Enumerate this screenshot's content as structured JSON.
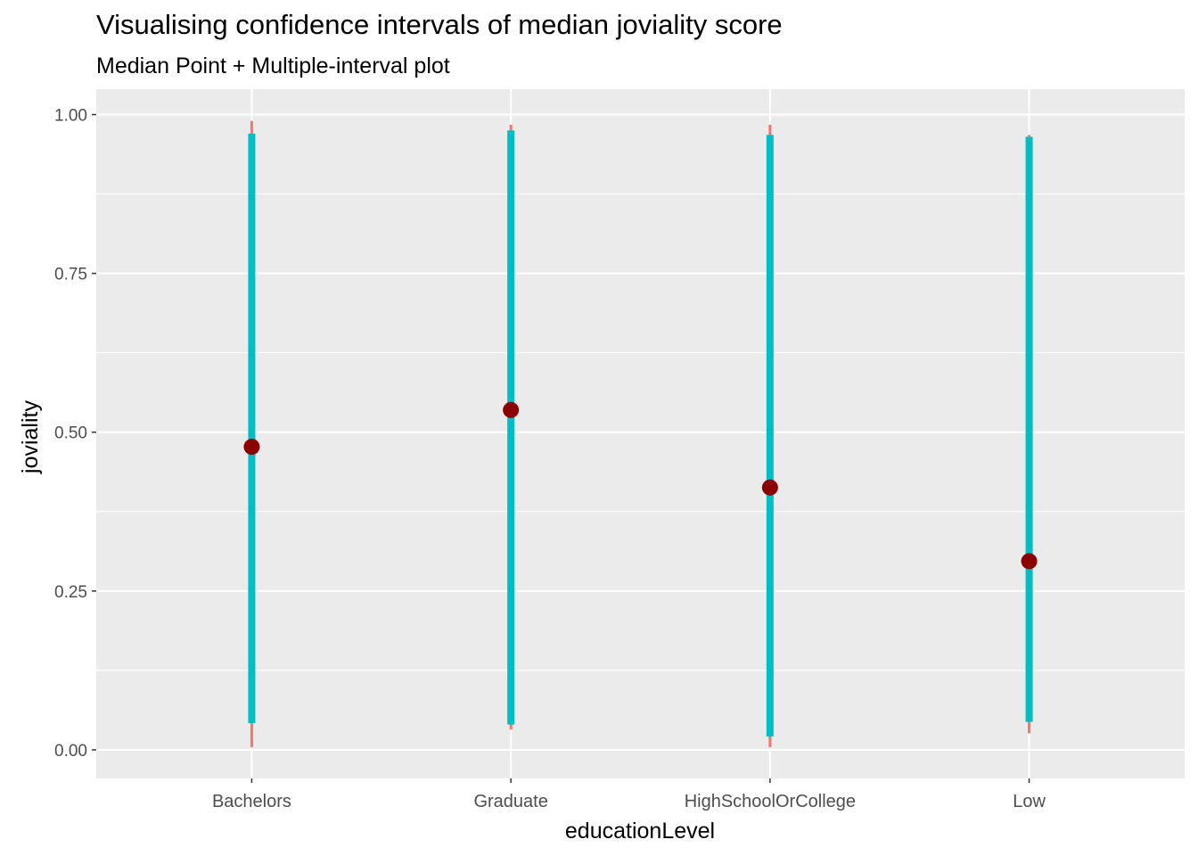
{
  "chart_data": {
    "type": "scatter",
    "title": "Visualising confidence intervals of median joviality score",
    "subtitle": "Median Point + Multiple-interval plot",
    "xlabel": "educationLevel",
    "ylabel": "joviality",
    "ylim": [
      -0.045,
      1.04
    ],
    "yticks": [
      {
        "value": 0.0,
        "label": "0.00"
      },
      {
        "value": 0.25,
        "label": "0.25"
      },
      {
        "value": 0.5,
        "label": "0.50"
      },
      {
        "value": 0.75,
        "label": "0.75"
      },
      {
        "value": 1.0,
        "label": "1.00"
      }
    ],
    "grid": true,
    "categories": [
      "Bachelors",
      "Graduate",
      "HighSchoolOrCollege",
      "Low"
    ],
    "series": [
      {
        "median": [
          0.477,
          0.535,
          0.413,
          0.297
        ],
        "inner_interval": [
          [
            0.042,
            0.97
          ],
          [
            0.04,
            0.975
          ],
          [
            0.021,
            0.968
          ],
          [
            0.044,
            0.965
          ]
        ],
        "outer_interval": [
          [
            0.004,
            0.99
          ],
          [
            0.032,
            0.984
          ],
          [
            0.004,
            0.984
          ],
          [
            0.026,
            0.968
          ]
        ]
      }
    ],
    "colors": {
      "panel": "#ebebeb",
      "grid": "#ffffff",
      "inner_interval": "#00bfc4",
      "outer_interval": "#f8766d",
      "median_point": "#8b0000"
    }
  }
}
